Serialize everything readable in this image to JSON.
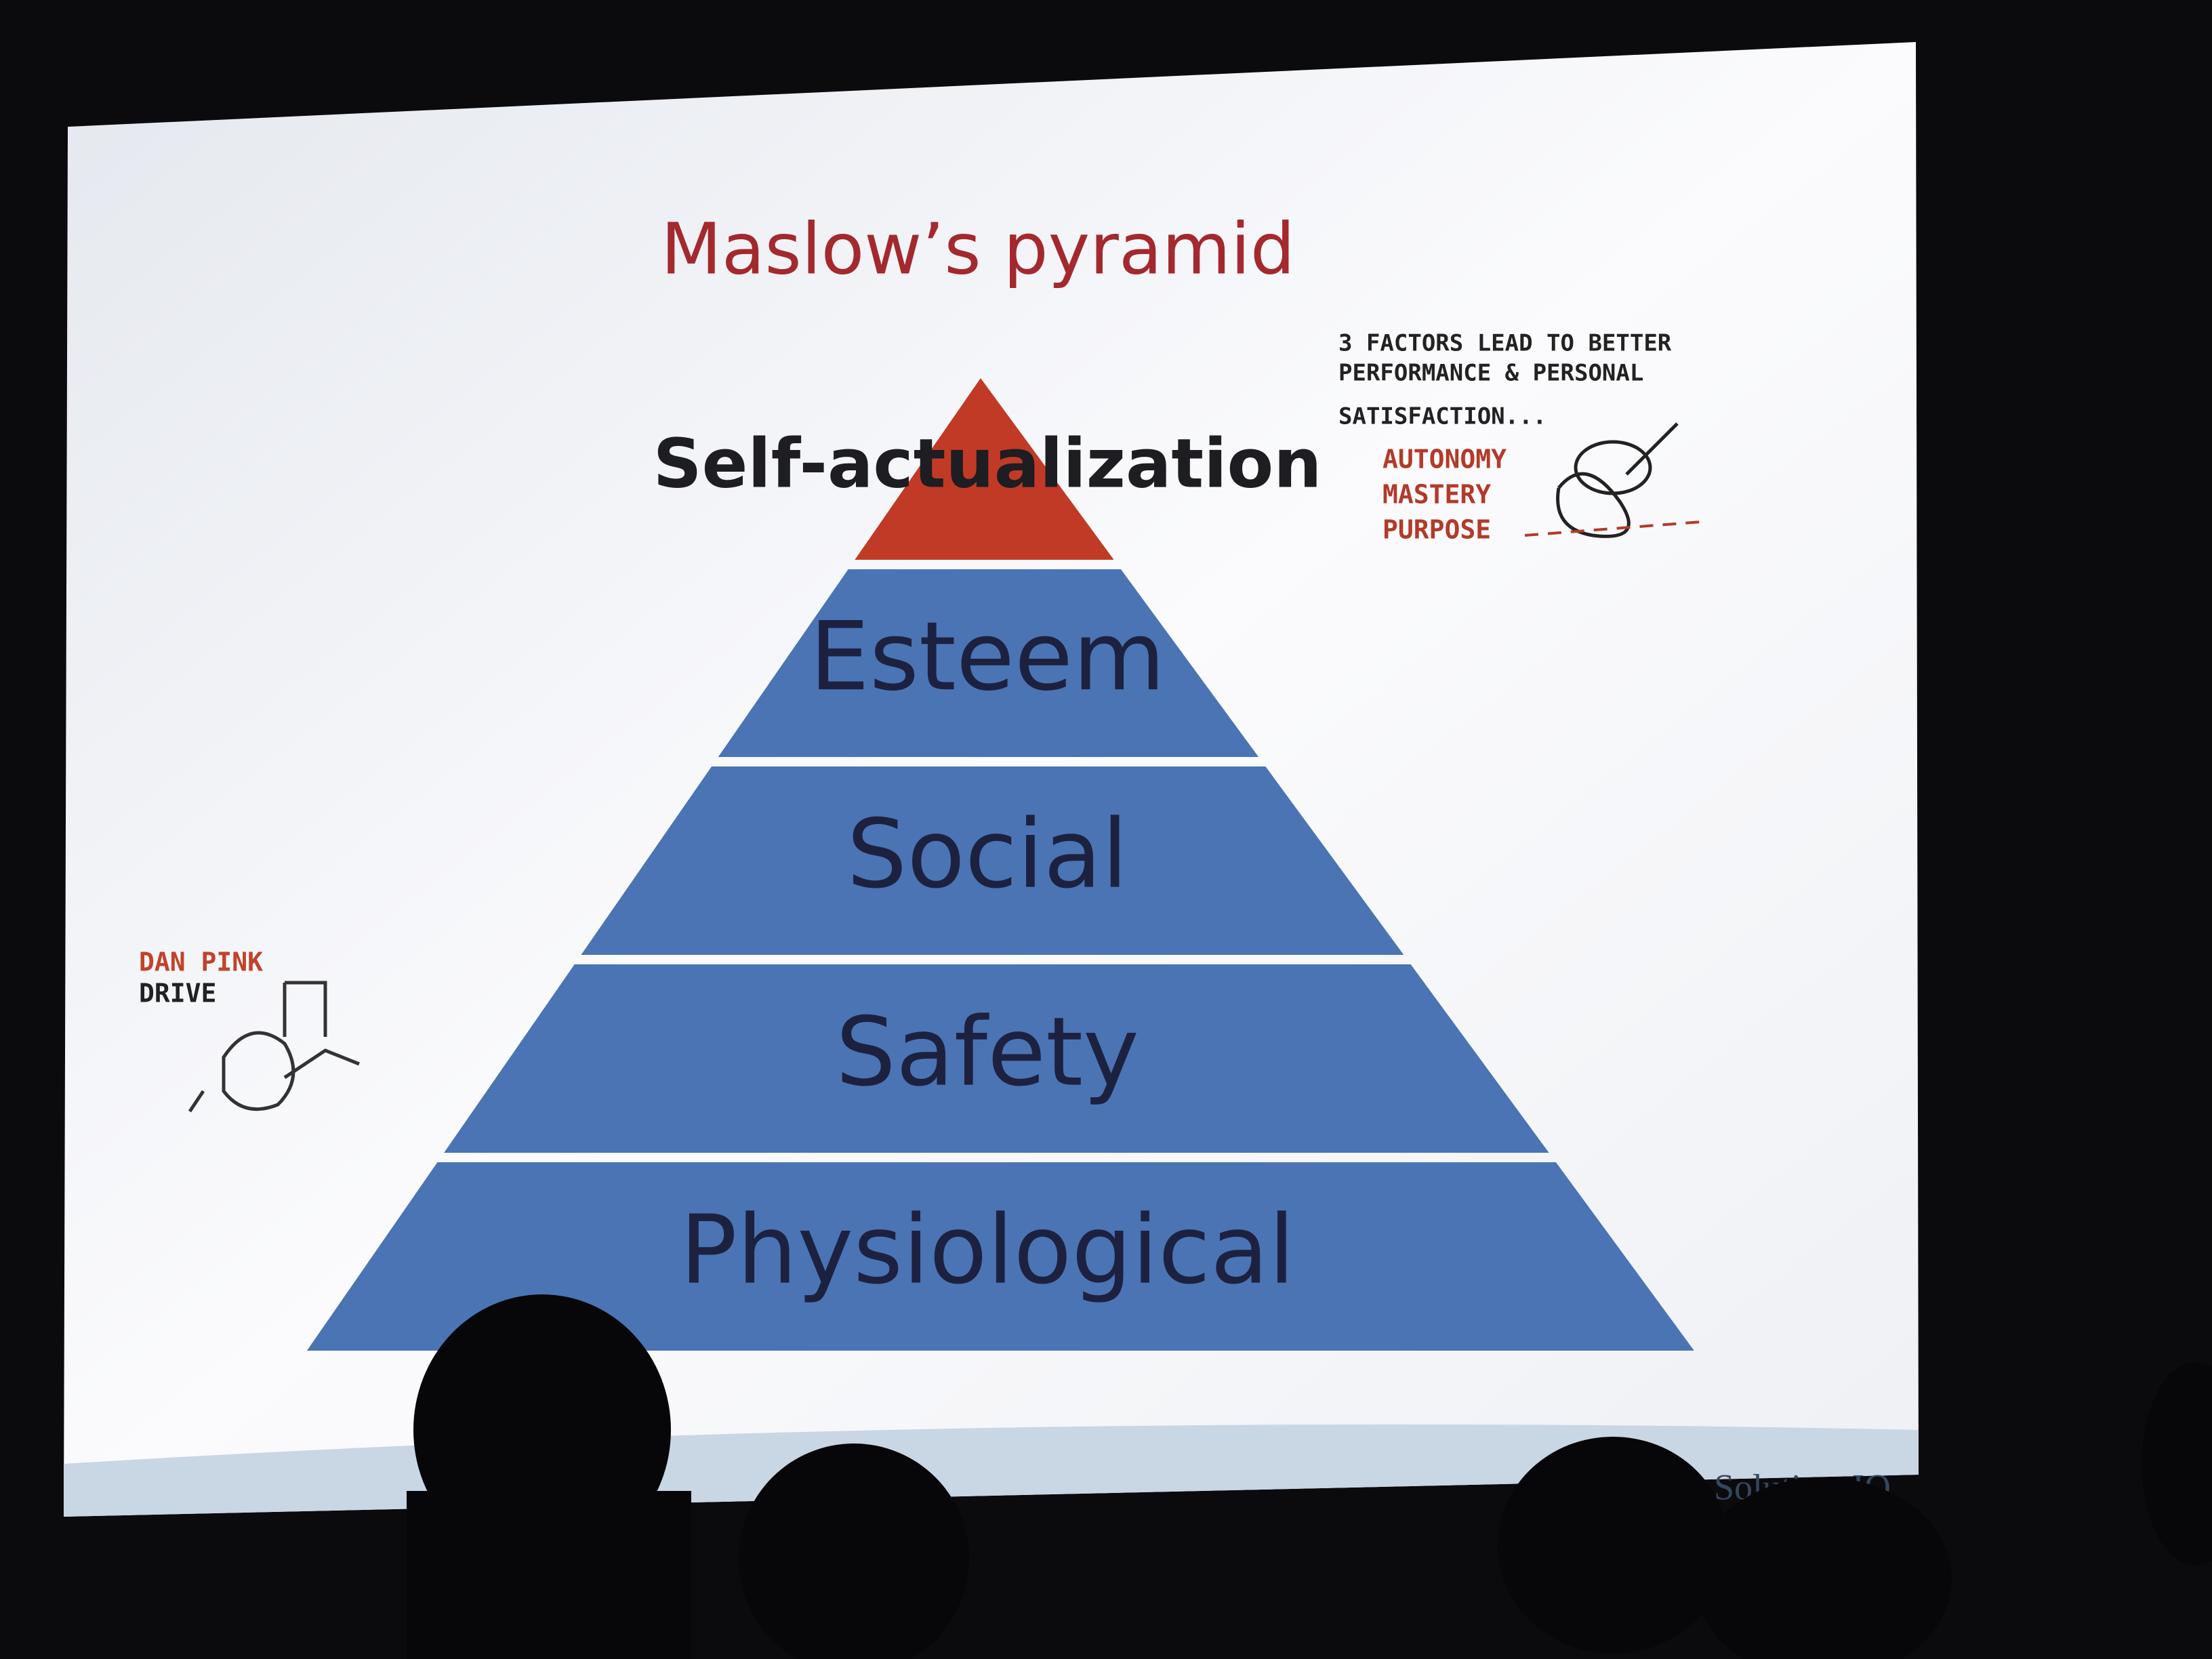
{
  "title": "Maslow’s pyramid",
  "levels": [
    "Self-actualization",
    "Esteem",
    "Social",
    "Safety",
    "Physiological"
  ],
  "note_right": {
    "heading": [
      "3 FACTORS LEAD TO BETTER",
      "PERFORMANCE & PERSONAL",
      "SATISFACTION..."
    ],
    "items": [
      "AUTONOMY",
      "MASTERY",
      "PURPOSE"
    ]
  },
  "note_left": [
    "DAN PINK",
    "DRIVE"
  ],
  "footer": {
    "logo": "SolutionsIQ"
  }
}
